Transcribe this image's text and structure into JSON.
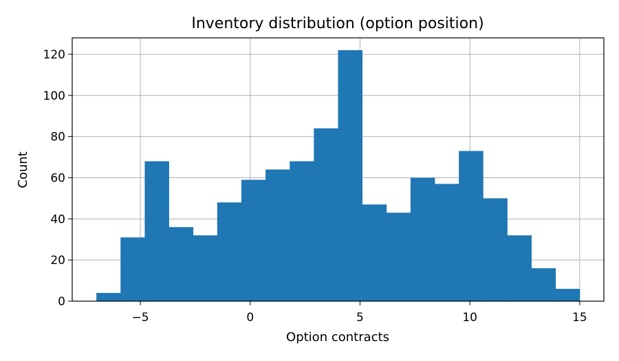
{
  "chart_data": {
    "type": "bar",
    "title": "Inventory distribution (option position)",
    "xlabel": "Option contracts",
    "ylabel": "Count",
    "xlim": [
      -8.1,
      16.1
    ],
    "ylim": [
      0,
      128
    ],
    "xticks": [
      -5,
      0,
      5,
      10,
      15
    ],
    "xtick_labels": [
      "−5",
      "0",
      "5",
      "10",
      "15"
    ],
    "yticks": [
      0,
      20,
      40,
      60,
      80,
      100,
      120
    ],
    "ytick_labels": [
      "0",
      "20",
      "40",
      "60",
      "80",
      "100",
      "120"
    ],
    "bin_edges": [
      -7,
      -5.9,
      -4.8,
      -3.7,
      -2.6,
      -1.5,
      -0.4,
      0.7,
      1.8,
      2.9,
      4.0,
      5.1,
      6.2,
      7.3,
      8.4,
      9.5,
      10.6,
      11.7,
      12.8,
      13.9,
      15.0
    ],
    "values": [
      4,
      31,
      68,
      36,
      32,
      48,
      59,
      64,
      68,
      84,
      122,
      47,
      43,
      60,
      57,
      73,
      50,
      32,
      16,
      6
    ],
    "bar_color": "#1f77b4",
    "grid": true
  }
}
